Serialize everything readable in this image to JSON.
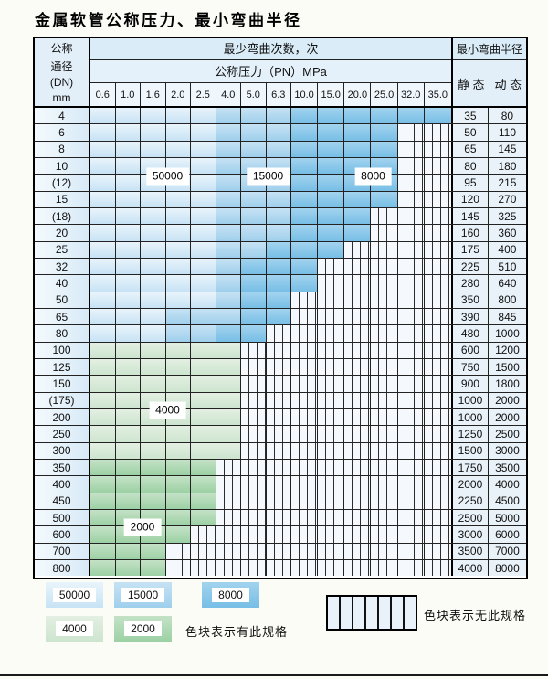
{
  "title": "金属软管公称压力、最小弯曲半径",
  "header": {
    "dn_line1": "公称",
    "dn_line2": "通径",
    "dn_line3": "(DN)",
    "dn_line4": "mm",
    "cycles_label": "最少弯曲次数，次",
    "pressure_label": "公称压力（PN）MPa",
    "pressure_columns": [
      "0.6",
      "1.0",
      "1.6",
      "2.0",
      "2.5",
      "4.0",
      "5.0",
      "6.3",
      "10.0",
      "15.0",
      "20.0",
      "25.0",
      "32.0",
      "35.0"
    ],
    "radius_label": "最小弯曲半径",
    "static_label": "静 态",
    "dynamic_label": "动 态"
  },
  "zone_colors": {
    "50000": {
      "base": "#c7e3f5",
      "light": "#e9f4fb"
    },
    "15000": {
      "base": "#9fcfec",
      "light": "#c6e2f4"
    },
    "8000": {
      "base": "#77bee6",
      "light": "#a2d3ee"
    },
    "4000": {
      "base": "#cde5cf",
      "light": "#e3efe2"
    },
    "2000": {
      "base": "#9cd1a4",
      "light": "#c4e2c6"
    }
  },
  "hatch": {
    "bg": "#f5f9fd",
    "stripe": "#2d2d2d"
  },
  "rows": [
    {
      "dn": "4",
      "segments": [
        {
          "zone": "50000",
          "span": 5
        },
        {
          "zone": "15000",
          "span": 3
        },
        {
          "zone": "8000",
          "span": 6
        }
      ],
      "static": "35",
      "dynamic": "80"
    },
    {
      "dn": "6",
      "segments": [
        {
          "zone": "50000",
          "span": 5
        },
        {
          "zone": "15000",
          "span": 3
        },
        {
          "zone": "8000",
          "span": 4
        }
      ],
      "static": "50",
      "dynamic": "110"
    },
    {
      "dn": "8",
      "segments": [
        {
          "zone": "50000",
          "span": 5
        },
        {
          "zone": "15000",
          "span": 3
        },
        {
          "zone": "8000",
          "span": 4
        }
      ],
      "static": "65",
      "dynamic": "145"
    },
    {
      "dn": "10",
      "segments": [
        {
          "zone": "50000",
          "span": 5
        },
        {
          "zone": "15000",
          "span": 3
        },
        {
          "zone": "8000",
          "span": 4
        }
      ],
      "static": "80",
      "dynamic": "180"
    },
    {
      "dn": "(12)",
      "segments": [
        {
          "zone": "50000",
          "span": 5
        },
        {
          "zone": "15000",
          "span": 3
        },
        {
          "zone": "8000",
          "span": 4
        }
      ],
      "static": "95",
      "dynamic": "215"
    },
    {
      "dn": "15",
      "segments": [
        {
          "zone": "50000",
          "span": 5
        },
        {
          "zone": "15000",
          "span": 3
        },
        {
          "zone": "8000",
          "span": 4
        }
      ],
      "static": "120",
      "dynamic": "270"
    },
    {
      "dn": "(18)",
      "segments": [
        {
          "zone": "50000",
          "span": 5
        },
        {
          "zone": "15000",
          "span": 3
        },
        {
          "zone": "8000",
          "span": 3
        }
      ],
      "static": "145",
      "dynamic": "325"
    },
    {
      "dn": "20",
      "segments": [
        {
          "zone": "50000",
          "span": 5
        },
        {
          "zone": "15000",
          "span": 3
        },
        {
          "zone": "8000",
          "span": 3
        }
      ],
      "static": "160",
      "dynamic": "360"
    },
    {
      "dn": "25",
      "segments": [
        {
          "zone": "50000",
          "span": 5
        },
        {
          "zone": "15000",
          "span": 2
        },
        {
          "zone": "8000",
          "span": 3
        }
      ],
      "static": "175",
      "dynamic": "400"
    },
    {
      "dn": "32",
      "segments": [
        {
          "zone": "50000",
          "span": 5
        },
        {
          "zone": "15000",
          "span": 1
        },
        {
          "zone": "8000",
          "span": 3
        }
      ],
      "static": "225",
      "dynamic": "510"
    },
    {
      "dn": "40",
      "segments": [
        {
          "zone": "50000",
          "span": 5
        },
        {
          "zone": "15000",
          "span": 1
        },
        {
          "zone": "8000",
          "span": 3
        }
      ],
      "static": "280",
      "dynamic": "640"
    },
    {
      "dn": "50",
      "segments": [
        {
          "zone": "50000",
          "span": 5
        },
        {
          "zone": "15000",
          "span": 1
        },
        {
          "zone": "8000",
          "span": 2
        }
      ],
      "static": "350",
      "dynamic": "800"
    },
    {
      "dn": "65",
      "segments": [
        {
          "zone": "50000",
          "span": 3
        },
        {
          "zone": "15000",
          "span": 3
        },
        {
          "zone": "8000",
          "span": 2
        }
      ],
      "static": "390",
      "dynamic": "845"
    },
    {
      "dn": "80",
      "segments": [
        {
          "zone": "50000",
          "span": 3
        },
        {
          "zone": "15000",
          "span": 2
        },
        {
          "zone": "8000",
          "span": 2
        }
      ],
      "static": "480",
      "dynamic": "1000"
    },
    {
      "dn": "100",
      "segments": [
        {
          "zone": "4000",
          "span": 6
        }
      ],
      "static": "600",
      "dynamic": "1200"
    },
    {
      "dn": "125",
      "segments": [
        {
          "zone": "4000",
          "span": 6
        }
      ],
      "static": "750",
      "dynamic": "1500"
    },
    {
      "dn": "150",
      "segments": [
        {
          "zone": "4000",
          "span": 6
        }
      ],
      "static": "900",
      "dynamic": "1800"
    },
    {
      "dn": "(175)",
      "segments": [
        {
          "zone": "4000",
          "span": 6
        }
      ],
      "static": "1000",
      "dynamic": "2000"
    },
    {
      "dn": "200",
      "segments": [
        {
          "zone": "4000",
          "span": 6
        }
      ],
      "static": "1000",
      "dynamic": "2000"
    },
    {
      "dn": "250",
      "segments": [
        {
          "zone": "4000",
          "span": 6
        }
      ],
      "static": "1250",
      "dynamic": "2500"
    },
    {
      "dn": "300",
      "segments": [
        {
          "zone": "4000",
          "span": 6
        }
      ],
      "static": "1500",
      "dynamic": "3000"
    },
    {
      "dn": "350",
      "segments": [
        {
          "zone": "2000",
          "span": 5
        }
      ],
      "static": "1750",
      "dynamic": "3500"
    },
    {
      "dn": "400",
      "segments": [
        {
          "zone": "2000",
          "span": 5
        }
      ],
      "static": "2000",
      "dynamic": "4000"
    },
    {
      "dn": "450",
      "segments": [
        {
          "zone": "2000",
          "span": 5
        }
      ],
      "static": "2250",
      "dynamic": "4500"
    },
    {
      "dn": "500",
      "segments": [
        {
          "zone": "2000",
          "span": 5
        }
      ],
      "static": "2500",
      "dynamic": "5000"
    },
    {
      "dn": "600",
      "segments": [
        {
          "zone": "2000",
          "span": 4
        }
      ],
      "static": "3000",
      "dynamic": "6000"
    },
    {
      "dn": "700",
      "segments": [
        {
          "zone": "2000",
          "span": 3
        }
      ],
      "static": "3500",
      "dynamic": "7000"
    },
    {
      "dn": "800",
      "segments": [
        {
          "zone": "2000",
          "span": 3
        }
      ],
      "static": "4000",
      "dynamic": "8000"
    }
  ],
  "overlay_labels": [
    {
      "text": "50000",
      "col_start": 2,
      "col_end": 4,
      "row_boundary": 4
    },
    {
      "text": "15000",
      "col_start": 6,
      "col_end": 8,
      "row_boundary": 4
    },
    {
      "text": "8000",
      "col_start": 10,
      "col_end": 12,
      "row_boundary": 4
    },
    {
      "text": "4000",
      "col_start": 2,
      "col_end": 4,
      "row_boundary": 18
    },
    {
      "text": "2000",
      "col_start": 1,
      "col_end": 3,
      "row_boundary": 25
    }
  ],
  "legend": {
    "swatches": [
      {
        "value": "50000"
      },
      {
        "value": "15000"
      },
      {
        "value": "8000"
      },
      {
        "value": "4000"
      },
      {
        "value": "2000"
      }
    ],
    "has_spec_text": "色块表示有此规格",
    "no_spec_text": "色块表示无此规格"
  }
}
